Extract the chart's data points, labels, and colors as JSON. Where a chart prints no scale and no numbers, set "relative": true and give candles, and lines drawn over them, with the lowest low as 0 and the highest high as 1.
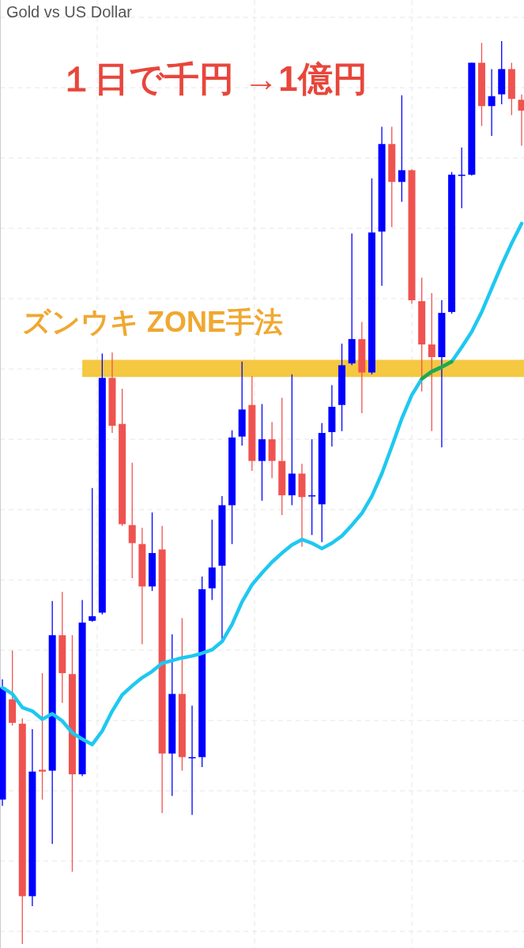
{
  "chart_data": {
    "type": "candlestick",
    "title": "Gold vs US Dollar",
    "relative": true,
    "grid": true,
    "annotations": [
      "１日で千円 →1億円"
    ],
    "categories": [
      null,
      null,
      null,
      null,
      null,
      null,
      null,
      null,
      null,
      null,
      null,
      null,
      null,
      null,
      null,
      null,
      null,
      null,
      null,
      null,
      null,
      null,
      null,
      null,
      null,
      null,
      null,
      null,
      null,
      null,
      null,
      null,
      null,
      null,
      null,
      null,
      null,
      null,
      null,
      null,
      null,
      null,
      null,
      null,
      null,
      null,
      null,
      null,
      null,
      null,
      null,
      null,
      null
    ],
    "ohlc": [
      [
        0.16,
        0.293,
        0.153,
        0.284
      ],
      [
        0.271,
        0.325,
        0.242,
        0.245
      ],
      [
        0.244,
        0.25,
        0,
        0.053
      ],
      [
        0.053,
        0.238,
        0.042,
        0.191
      ],
      [
        0.193,
        0.3,
        0.16,
        0.191
      ],
      [
        0.192,
        0.38,
        0.111,
        0.342
      ],
      [
        0.342,
        0.39,
        0.267,
        0.3
      ],
      [
        0.299,
        0.342,
        0.08,
        0.188
      ],
      [
        0.188,
        0.381,
        0.186,
        0.356
      ],
      [
        0.358,
        0.505,
        0.357,
        0.363
      ],
      [
        0.367,
        0.654,
        0.365,
        0.627
      ],
      [
        0.627,
        0.655,
        0.566,
        0.574
      ],
      [
        0.576,
        0.615,
        0.463,
        0.465
      ],
      [
        0.464,
        0.533,
        0.405,
        0.444
      ],
      [
        0.443,
        0.461,
        0.332,
        0.396
      ],
      [
        0.396,
        0.478,
        0.391,
        0.433
      ],
      [
        0.437,
        0.463,
        0.145,
        0.211
      ],
      [
        0.211,
        0.343,
        0.164,
        0.277
      ],
      [
        0.277,
        0.361,
        0.192,
        0.207
      ],
      [
        0.206,
        0.264,
        0.143,
        0.207
      ],
      [
        0.207,
        0.407,
        0.196,
        0.393
      ],
      [
        0.394,
        0.47,
        0.381,
        0.417
      ],
      [
        0.419,
        0.496,
        0.336,
        0.486
      ],
      [
        0.486,
        0.569,
        0.443,
        0.561
      ],
      [
        0.562,
        0.645,
        0.552,
        0.592
      ],
      [
        0.597,
        0.629,
        0.524,
        0.535
      ],
      [
        0.535,
        0.598,
        0.491,
        0.559
      ],
      [
        0.559,
        0.578,
        0.516,
        0.535
      ],
      [
        0.535,
        0.605,
        0.475,
        0.497
      ],
      [
        0.497,
        0.631,
        0.486,
        0.521
      ],
      [
        0.521,
        0.532,
        0.44,
        0.495
      ],
      [
        0.496,
        0.559,
        0.453,
        0.497
      ],
      [
        0.487,
        0.577,
        0.445,
        0.566
      ],
      [
        0.567,
        0.619,
        0.551,
        0.595
      ],
      [
        0.597,
        0.665,
        0.568,
        0.641
      ],
      [
        0.643,
        0.787,
        0.641,
        0.67
      ],
      [
        0.67,
        0.689,
        0.588,
        0.633
      ],
      [
        0.633,
        0.848,
        0.631,
        0.788
      ],
      [
        0.789,
        0.905,
        0.729,
        0.886
      ],
      [
        0.886,
        0.905,
        0.794,
        0.844
      ],
      [
        0.844,
        0.94,
        0.822,
        0.857
      ],
      [
        0.857,
        0.858,
        0.709,
        0.713
      ],
      [
        0.712,
        0.738,
        0.612,
        0.664
      ],
      [
        0.664,
        0.721,
        0.568,
        0.65
      ],
      [
        0.65,
        0.713,
        0.55,
        0.699
      ],
      [
        0.7,
        0.855,
        0.698,
        0.852
      ],
      [
        0.851,
        0.882,
        0.815,
        0.852
      ],
      [
        0.852,
        0.976,
        0.851,
        0.976
      ],
      [
        0.976,
        0.998,
        0.906,
        0.928
      ],
      [
        0.928,
        0.969,
        0.895,
        0.939
      ],
      [
        0.941,
        1,
        0.93,
        0.969
      ],
      [
        0.969,
        0.976,
        0.918,
        0.936
      ],
      [
        0.935,
        0.941,
        0.884,
        0.923
      ]
    ],
    "colors": [
      "#0000ff",
      "#ef5350",
      "#ef5350",
      "#0000ff",
      "#ef5350",
      "#0000ff",
      "#ef5350",
      "#ef5350",
      "#0000ff",
      "#0000ff",
      "#0000ff",
      "#ef5350",
      "#ef5350",
      "#ef5350",
      "#ef5350",
      "#0000ff",
      "#ef5350",
      "#0000ff",
      "#ef5350",
      "#0000ff",
      "#0000ff",
      "#0000ff",
      "#0000ff",
      "#0000ff",
      "#0000ff",
      "#ef5350",
      "#0000ff",
      "#ef5350",
      "#ef5350",
      "#0000ff",
      "#ef5350",
      "#0000ff",
      "#0000ff",
      "#0000ff",
      "#0000ff",
      "#0000ff",
      "#ef5350",
      "#0000ff",
      "#0000ff",
      "#ef5350",
      "#0000ff",
      "#ef5350",
      "#ef5350",
      "#ef5350",
      "#0000ff",
      "#0000ff",
      "#0000ff",
      "#0000ff",
      "#ef5350",
      "#0000ff",
      "#0000ff",
      "#ef5350",
      "#ef5350"
    ],
    "series": [
      {
        "type": "line",
        "color": "#1ec8f0",
        "values": [
          0.284,
          0.277,
          0.262,
          0.258,
          0.249,
          0.255,
          0.247,
          0.234,
          0.227,
          0.221,
          0.236,
          0.258,
          0.276,
          0.286,
          0.295,
          0.302,
          0.311,
          0.314,
          0.317,
          0.319,
          0.322,
          0.326,
          0.335,
          0.354,
          0.379,
          0.398,
          0.411,
          0.423,
          0.433,
          0.442,
          0.448,
          0.444,
          0.438,
          0.444,
          0.452,
          0.464,
          0.477,
          0.496,
          0.521,
          0.551,
          0.582,
          0.608,
          0.626,
          0.634,
          0.639,
          0.645,
          0.661,
          0.678,
          0.7,
          0.726,
          0.752,
          0.776,
          0.798
        ]
      },
      {
        "type": "line",
        "color": "#22a84a",
        "values": [
          null,
          null,
          null,
          null,
          null,
          null,
          null,
          null,
          null,
          null,
          null,
          null,
          null,
          null,
          null,
          null,
          null,
          null,
          null,
          null,
          null,
          null,
          null,
          null,
          null,
          null,
          null,
          null,
          null,
          null,
          null,
          null,
          null,
          null,
          null,
          null,
          null,
          null,
          null,
          null,
          null,
          null,
          0.626,
          0.634,
          0.639,
          0.645,
          null,
          null,
          null,
          null,
          null,
          null,
          null
        ]
      }
    ],
    "bands": [
      {
        "axis": "y",
        "from": 0.628,
        "to": 0.647,
        "label": "ズンウキ ZONE手法",
        "color": "#f5c842"
      }
    ]
  }
}
